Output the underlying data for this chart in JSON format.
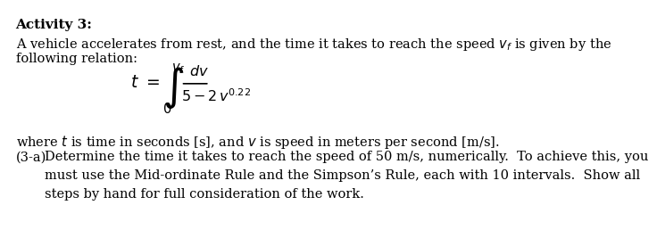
{
  "title": "Activity 3:",
  "line1": "A vehicle accelerates from rest, and the time it takes to reach the speed $v_f$ is given by the",
  "line2": "following relation:",
  "formula_lhs": "$t = $",
  "integral_upper": "$v_f$",
  "integral_lower": "$0$",
  "numerator": "$dv$",
  "denominator": "$5 - 2\\,v^{0.22}$",
  "where_line": "where $t$ is time in seconds [s], and $v$ is speed in meters per second [m/s].",
  "item_label": "(3-a)",
  "item_text1": "Determine the time it takes to reach the speed of 50 m/s, numerically.  To achieve this, you",
  "item_text2": "must use the Mid-ordinate Rule and the Simpson’s Rule, each with 10 intervals.  Show all",
  "item_text3": "steps by hand for full consideration of the work.",
  "bg_color": "#ffffff",
  "text_color": "#000000",
  "font_size": 10.5,
  "title_font_size": 11
}
